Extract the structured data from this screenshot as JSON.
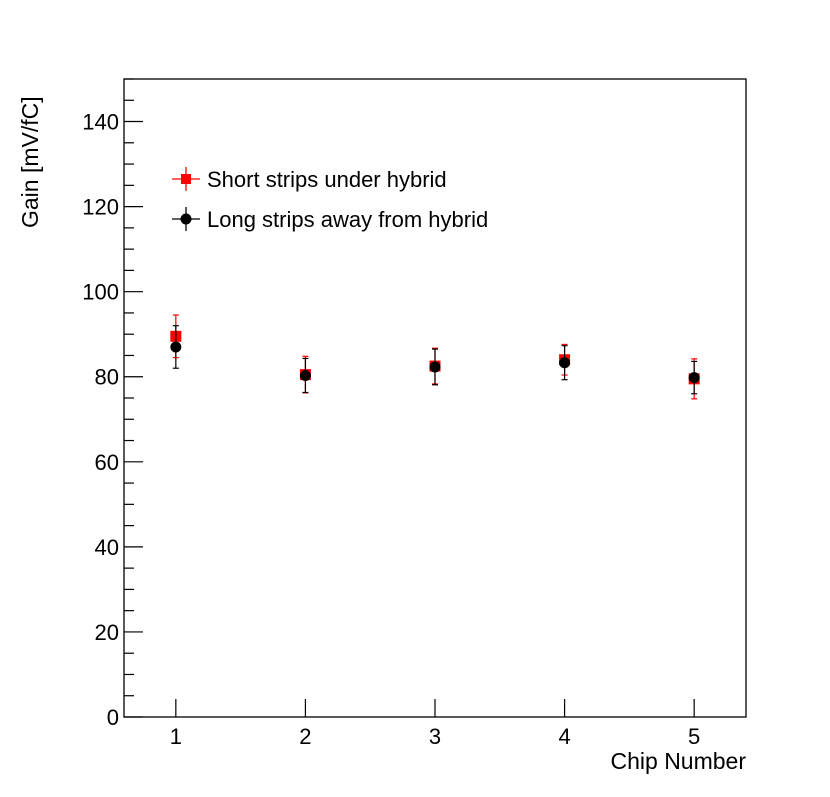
{
  "chart_data": {
    "type": "scatter",
    "xlabel": "Chip Number",
    "ylabel": "Gain [mV/fC]",
    "xlim": [
      0.6,
      5.4
    ],
    "ylim": [
      0,
      150
    ],
    "x_ticks": [
      1,
      2,
      3,
      4,
      5
    ],
    "y_ticks": [
      0,
      20,
      40,
      60,
      80,
      100,
      120,
      140
    ],
    "legend_position": "top-left",
    "grid": false,
    "series": [
      {
        "name": "Short strips under hybrid",
        "marker": "square",
        "color": "#ff0000",
        "x": [
          1,
          2,
          3,
          4,
          5
        ],
        "y": [
          89.5,
          80.5,
          82.5,
          84.0,
          79.5
        ],
        "yerr": [
          5.0,
          4.3,
          4.2,
          3.6,
          4.7
        ]
      },
      {
        "name": "Long strips away from hybrid",
        "marker": "circle",
        "color": "#000000",
        "x": [
          1,
          2,
          3,
          4,
          5
        ],
        "y": [
          87.0,
          80.3,
          82.3,
          83.3,
          79.8
        ],
        "yerr": [
          5.0,
          4.0,
          4.2,
          4.0,
          3.8
        ]
      }
    ]
  }
}
